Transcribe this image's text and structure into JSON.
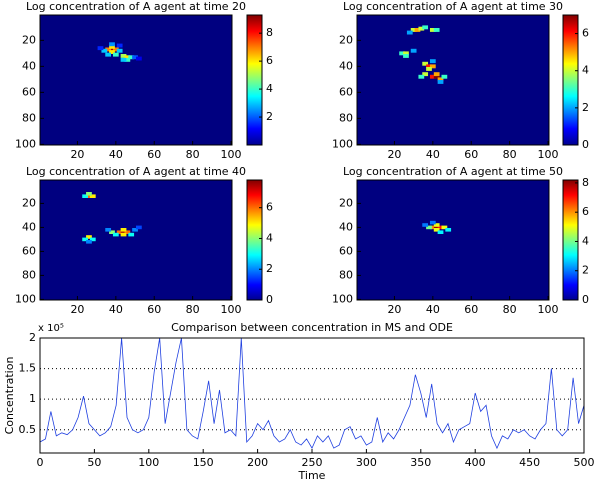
{
  "chart_data": [
    {
      "type": "heatmap",
      "title": "Log concentration of A agent at time 20",
      "colormap": "jet",
      "xlim": [
        0.5,
        100.5
      ],
      "ylim": [
        0.5,
        100.5
      ],
      "xticks": [
        20,
        40,
        60,
        80,
        100
      ],
      "yticks": [
        20,
        40,
        60,
        80,
        100
      ],
      "clim": [
        0,
        9.3
      ],
      "cticks": [
        2,
        4,
        6,
        8
      ],
      "points": [
        {
          "x": 38,
          "y": 27,
          "value": 9
        },
        {
          "x": 36,
          "y": 27,
          "value": 7
        },
        {
          "x": 40,
          "y": 27,
          "value": 7
        },
        {
          "x": 38,
          "y": 25,
          "value": 6
        },
        {
          "x": 38,
          "y": 29,
          "value": 6
        },
        {
          "x": 34,
          "y": 28,
          "value": 3
        },
        {
          "x": 42,
          "y": 28,
          "value": 3
        },
        {
          "x": 38,
          "y": 23,
          "value": 2.5
        },
        {
          "x": 36,
          "y": 31,
          "value": 3
        },
        {
          "x": 40,
          "y": 31,
          "value": 4
        },
        {
          "x": 44,
          "y": 32,
          "value": 5
        },
        {
          "x": 46,
          "y": 33,
          "value": 6
        },
        {
          "x": 48,
          "y": 33,
          "value": 4
        },
        {
          "x": 46,
          "y": 35,
          "value": 4
        },
        {
          "x": 44,
          "y": 35,
          "value": 3
        },
        {
          "x": 50,
          "y": 33,
          "value": 2
        },
        {
          "x": 32,
          "y": 26,
          "value": 1.5
        },
        {
          "x": 42,
          "y": 24,
          "value": 1.5
        },
        {
          "x": 52,
          "y": 34,
          "value": 1
        }
      ]
    },
    {
      "type": "heatmap",
      "title": "Log concentration of A agent at time 30",
      "colormap": "jet",
      "xlim": [
        0.5,
        100.5
      ],
      "ylim": [
        0.5,
        100.5
      ],
      "xticks": [
        20,
        40,
        60,
        80,
        100
      ],
      "yticks": [
        20,
        40,
        60,
        80,
        100
      ],
      "clim": [
        0,
        7
      ],
      "cticks": [
        0,
        2,
        4,
        6
      ],
      "points": [
        {
          "x": 30,
          "y": 12,
          "value": 4
        },
        {
          "x": 32,
          "y": 12,
          "value": 5
        },
        {
          "x": 34,
          "y": 11,
          "value": 4
        },
        {
          "x": 36,
          "y": 10,
          "value": 3
        },
        {
          "x": 40,
          "y": 12,
          "value": 4
        },
        {
          "x": 42,
          "y": 12,
          "value": 3
        },
        {
          "x": 28,
          "y": 14,
          "value": 2
        },
        {
          "x": 24,
          "y": 30,
          "value": 3
        },
        {
          "x": 26,
          "y": 30,
          "value": 4
        },
        {
          "x": 26,
          "y": 32,
          "value": 3
        },
        {
          "x": 30,
          "y": 28,
          "value": 2
        },
        {
          "x": 36,
          "y": 38,
          "value": 4
        },
        {
          "x": 38,
          "y": 40,
          "value": 6
        },
        {
          "x": 40,
          "y": 40,
          "value": 5
        },
        {
          "x": 38,
          "y": 42,
          "value": 4
        },
        {
          "x": 40,
          "y": 48,
          "value": 6
        },
        {
          "x": 42,
          "y": 48,
          "value": 7
        },
        {
          "x": 44,
          "y": 50,
          "value": 5
        },
        {
          "x": 42,
          "y": 46,
          "value": 5
        },
        {
          "x": 36,
          "y": 46,
          "value": 4
        },
        {
          "x": 34,
          "y": 48,
          "value": 3
        },
        {
          "x": 46,
          "y": 48,
          "value": 3
        },
        {
          "x": 44,
          "y": 52,
          "value": 2
        },
        {
          "x": 40,
          "y": 36,
          "value": 2
        }
      ]
    },
    {
      "type": "heatmap",
      "title": "Log concentration of A agent at time 40",
      "colormap": "jet",
      "xlim": [
        0.5,
        100.5
      ],
      "ylim": [
        0.5,
        100.5
      ],
      "xticks": [
        20,
        40,
        60,
        80,
        100
      ],
      "yticks": [
        20,
        40,
        60,
        80,
        100
      ],
      "clim": [
        0,
        7.8
      ],
      "cticks": [
        0,
        2,
        4,
        6
      ],
      "points": [
        {
          "x": 26,
          "y": 14,
          "value": 6
        },
        {
          "x": 28,
          "y": 14,
          "value": 5
        },
        {
          "x": 24,
          "y": 14,
          "value": 3
        },
        {
          "x": 26,
          "y": 12,
          "value": 4
        },
        {
          "x": 26,
          "y": 48,
          "value": 5
        },
        {
          "x": 24,
          "y": 50,
          "value": 3
        },
        {
          "x": 28,
          "y": 50,
          "value": 3
        },
        {
          "x": 26,
          "y": 52,
          "value": 2
        },
        {
          "x": 38,
          "y": 44,
          "value": 4
        },
        {
          "x": 42,
          "y": 44,
          "value": 6
        },
        {
          "x": 44,
          "y": 44,
          "value": 7.5
        },
        {
          "x": 46,
          "y": 44,
          "value": 6
        },
        {
          "x": 44,
          "y": 42,
          "value": 5
        },
        {
          "x": 44,
          "y": 46,
          "value": 5
        },
        {
          "x": 48,
          "y": 46,
          "value": 3
        },
        {
          "x": 40,
          "y": 46,
          "value": 3
        },
        {
          "x": 50,
          "y": 42,
          "value": 2
        },
        {
          "x": 52,
          "y": 40,
          "value": 1.5
        },
        {
          "x": 36,
          "y": 42,
          "value": 2
        }
      ]
    },
    {
      "type": "heatmap",
      "title": "Log concentration of A agent at time 50",
      "colormap": "jet",
      "xlim": [
        0.5,
        100.5
      ],
      "ylim": [
        0.5,
        100.5
      ],
      "xticks": [
        20,
        40,
        60,
        80,
        100
      ],
      "yticks": [
        20,
        40,
        60,
        80,
        100
      ],
      "clim": [
        0,
        8.2
      ],
      "cticks": [
        0,
        2,
        4,
        6,
        8
      ],
      "points": [
        {
          "x": 40,
          "y": 40,
          "value": 6
        },
        {
          "x": 42,
          "y": 40,
          "value": 8
        },
        {
          "x": 44,
          "y": 40,
          "value": 7
        },
        {
          "x": 42,
          "y": 38,
          "value": 5
        },
        {
          "x": 42,
          "y": 42,
          "value": 5
        },
        {
          "x": 38,
          "y": 40,
          "value": 4
        },
        {
          "x": 46,
          "y": 40,
          "value": 5
        },
        {
          "x": 48,
          "y": 42,
          "value": 3
        },
        {
          "x": 36,
          "y": 38,
          "value": 2
        },
        {
          "x": 40,
          "y": 36,
          "value": 2
        },
        {
          "x": 44,
          "y": 44,
          "value": 3
        }
      ]
    },
    {
      "type": "line",
      "title": "Comparison between concentration in MS and ODE",
      "xlabel": "Time",
      "ylabel": "Concentration",
      "y_multiplier": "x 10⁵",
      "xlim": [
        0,
        500
      ],
      "ylim": [
        0.12,
        2
      ],
      "xticks": [
        0,
        50,
        100,
        150,
        200,
        250,
        300,
        350,
        400,
        450,
        500
      ],
      "yticks": [
        0.5,
        1,
        1.5,
        2
      ],
      "grid": true,
      "x": [
        0,
        5,
        10,
        15,
        20,
        25,
        30,
        35,
        40,
        45,
        50,
        55,
        60,
        65,
        70,
        75,
        80,
        85,
        90,
        95,
        100,
        105,
        110,
        115,
        120,
        125,
        130,
        135,
        140,
        145,
        150,
        155,
        160,
        165,
        170,
        175,
        180,
        185,
        190,
        195,
        200,
        205,
        210,
        215,
        220,
        225,
        230,
        235,
        240,
        245,
        250,
        255,
        260,
        265,
        270,
        275,
        280,
        285,
        290,
        295,
        300,
        305,
        310,
        315,
        320,
        325,
        330,
        335,
        340,
        345,
        350,
        355,
        360,
        365,
        370,
        375,
        380,
        385,
        390,
        395,
        400,
        405,
        410,
        415,
        420,
        425,
        430,
        435,
        440,
        445,
        450,
        455,
        460,
        465,
        470,
        475,
        480,
        485,
        490,
        495,
        500
      ],
      "series": [
        {
          "color": "#2040e0",
          "values": [
            0.3,
            0.35,
            0.8,
            0.4,
            0.45,
            0.42,
            0.5,
            0.7,
            1.05,
            0.6,
            0.5,
            0.4,
            0.45,
            0.55,
            0.9,
            2.0,
            0.7,
            0.5,
            0.45,
            0.5,
            0.7,
            1.45,
            2.0,
            0.6,
            1.1,
            1.6,
            2.0,
            0.5,
            0.4,
            0.35,
            0.8,
            1.3,
            0.6,
            1.15,
            0.45,
            0.5,
            0.4,
            2.0,
            0.3,
            0.4,
            0.6,
            0.5,
            0.65,
            0.4,
            0.3,
            0.35,
            0.5,
            0.3,
            0.25,
            0.35,
            0.2,
            0.4,
            0.3,
            0.4,
            0.2,
            0.25,
            0.5,
            0.55,
            0.35,
            0.4,
            0.25,
            0.3,
            0.7,
            0.3,
            0.45,
            0.35,
            0.5,
            0.7,
            0.9,
            1.4,
            1.1,
            0.7,
            1.25,
            0.6,
            0.45,
            0.6,
            0.3,
            0.5,
            0.55,
            0.6,
            1.1,
            0.8,
            0.9,
            0.4,
            0.2,
            0.4,
            0.35,
            0.5,
            0.45,
            0.5,
            0.4,
            0.35,
            0.5,
            0.6,
            1.5,
            0.5,
            0.4,
            0.5,
            1.35,
            0.6,
            0.9
          ]
        }
      ]
    }
  ]
}
